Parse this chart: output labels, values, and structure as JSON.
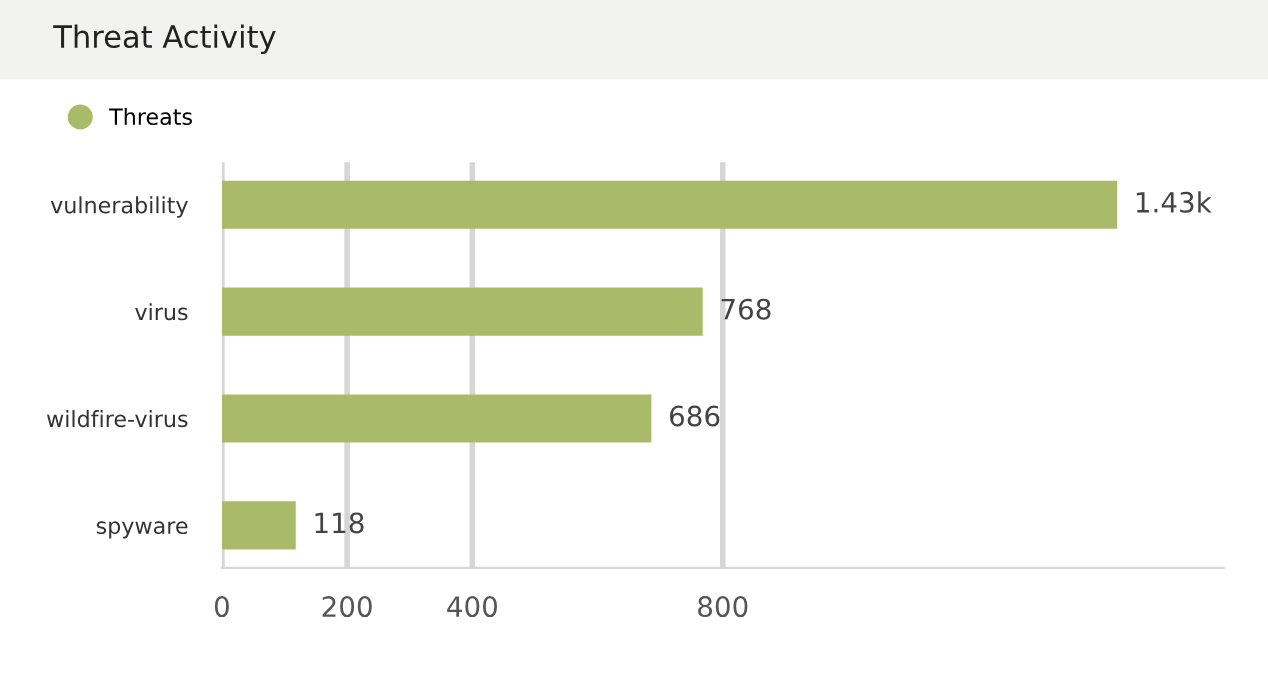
{
  "chart_data": {
    "type": "bar",
    "orientation": "horizontal",
    "title": "Threat Activity",
    "categories": [
      "vulnerability",
      "virus",
      "wildfire-virus",
      "spyware"
    ],
    "series": [
      {
        "name": "Threats",
        "color": "#a9bb68",
        "values": [
          1430,
          768,
          686,
          118
        ],
        "value_labels": [
          "1.43k",
          "768",
          "686",
          "118"
        ]
      }
    ],
    "xlim": [
      0,
      1600
    ],
    "xticks": [
      0,
      200,
      400,
      800
    ],
    "grid": "x",
    "legend": "top left"
  }
}
